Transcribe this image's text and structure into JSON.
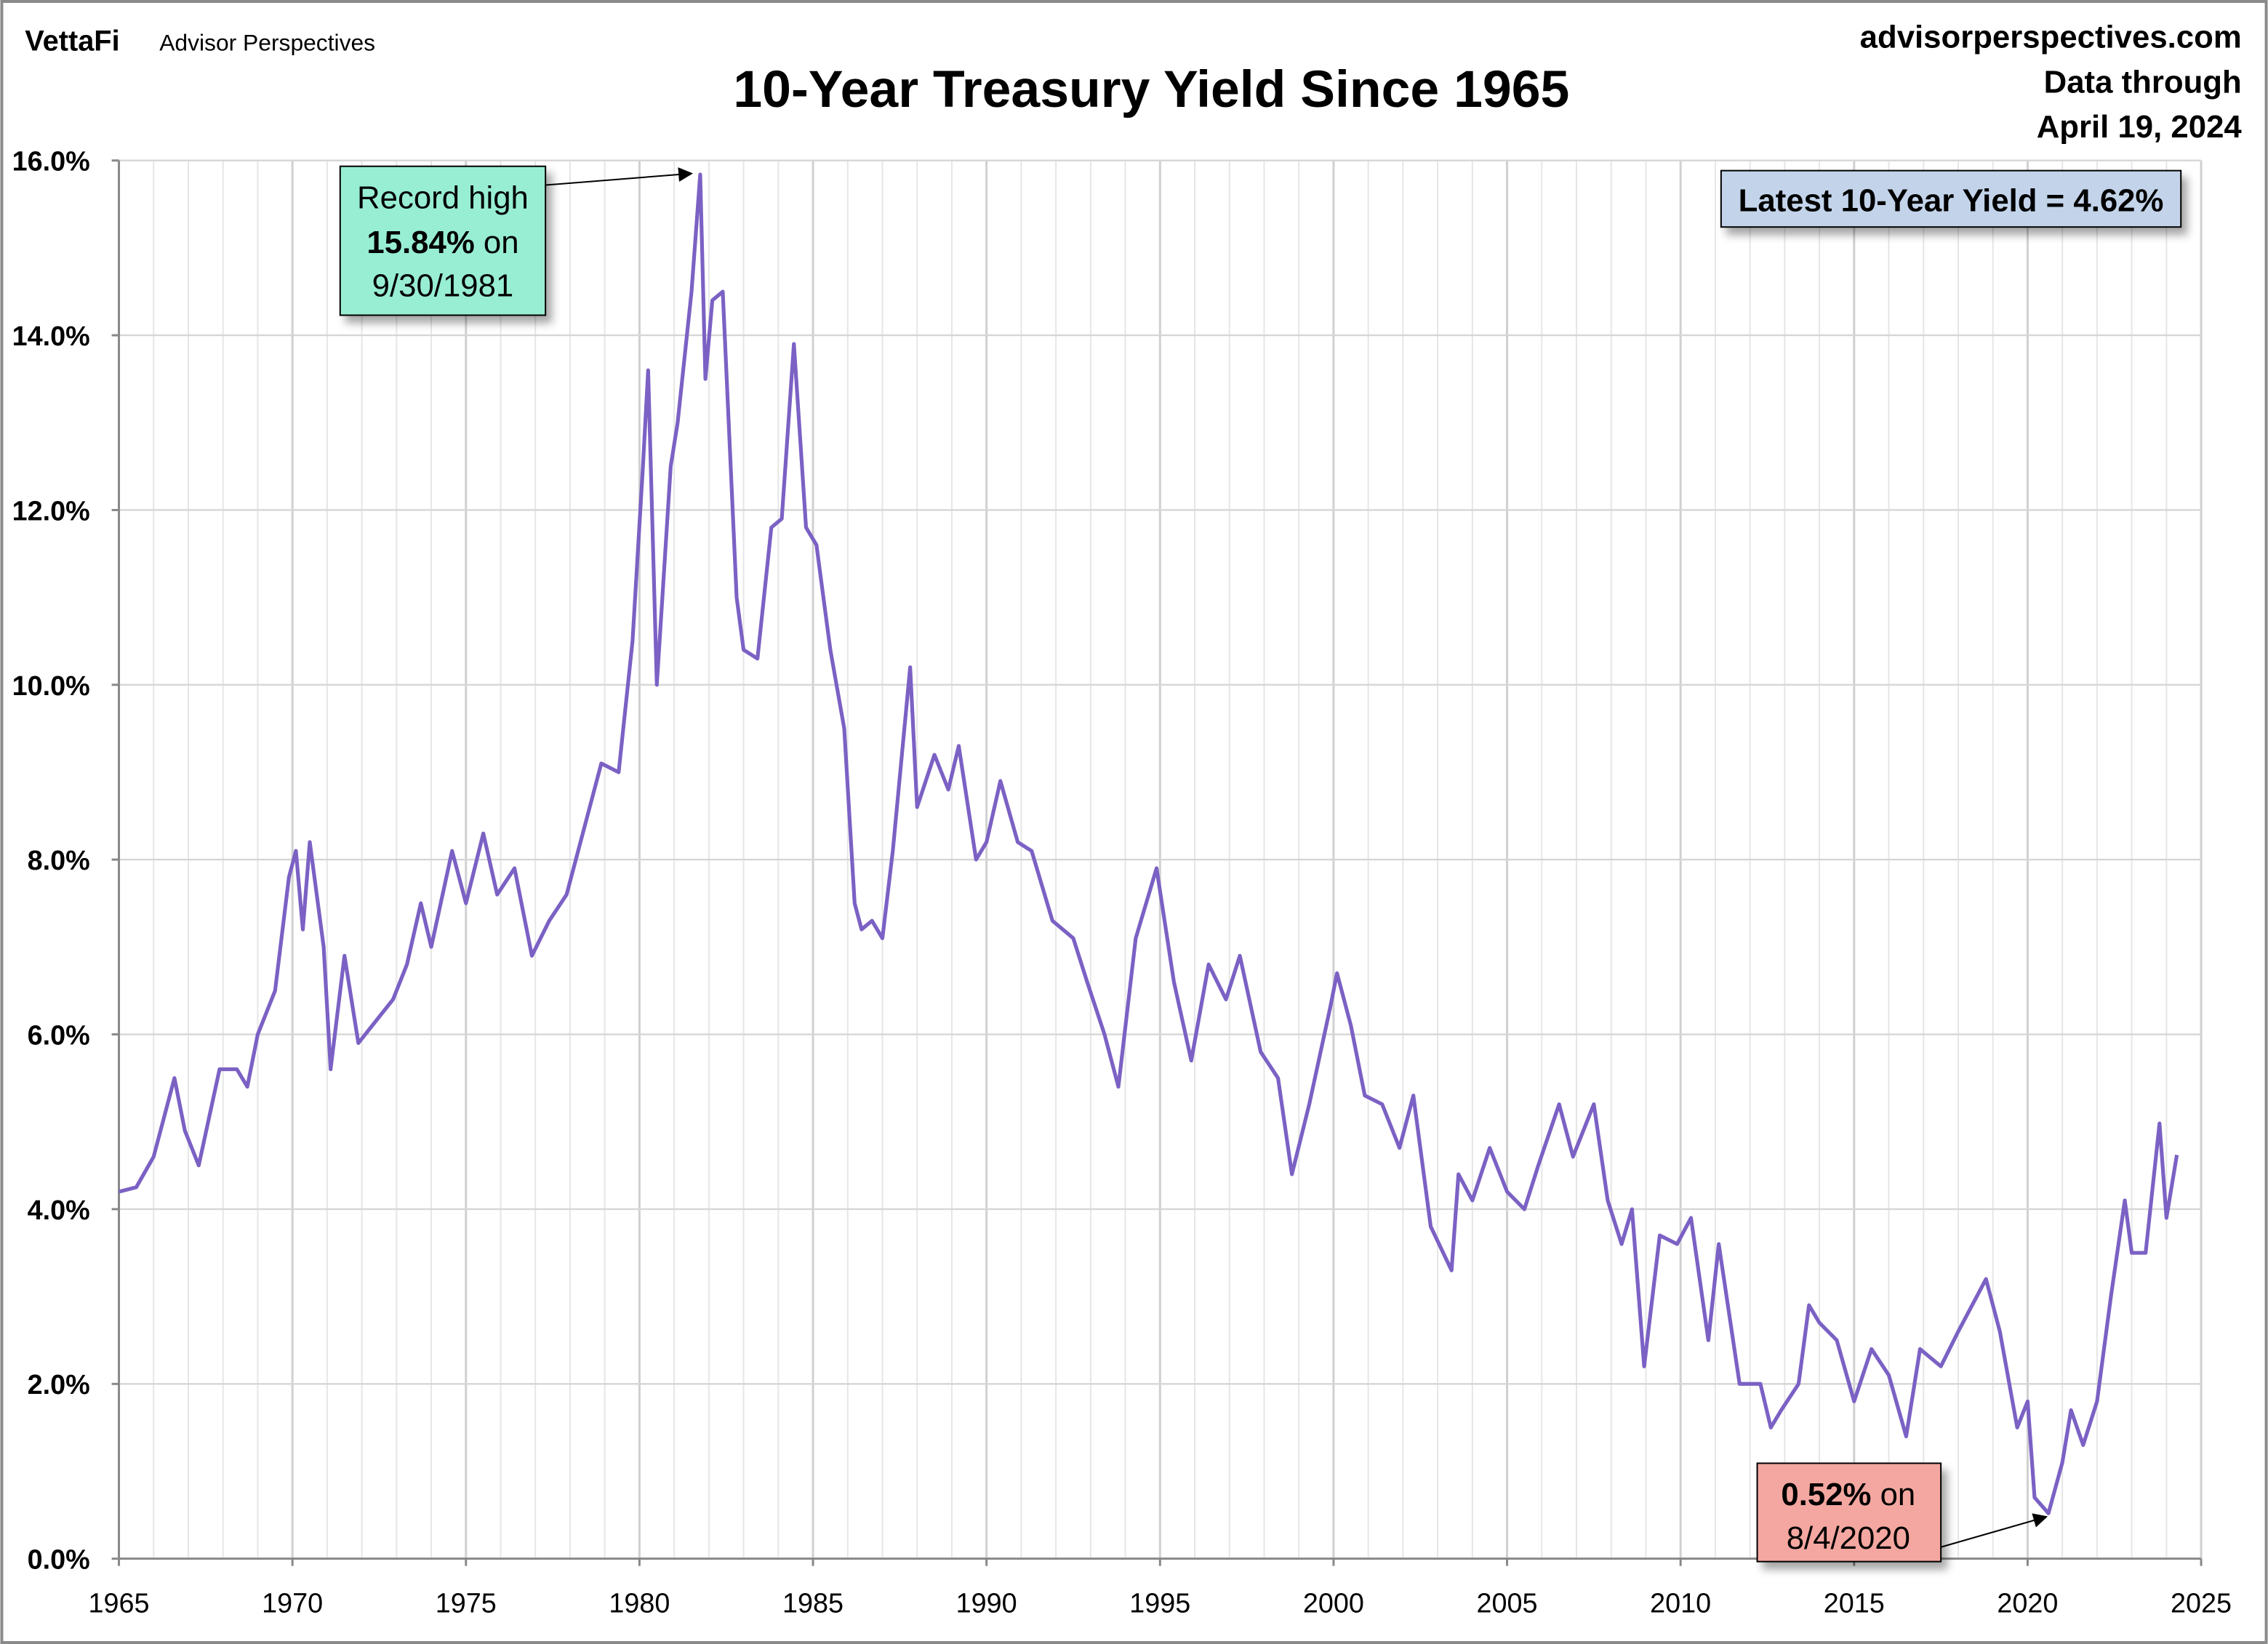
{
  "header": {
    "logo": "VettaFi",
    "brand": "Advisor Perspectives",
    "site": "advisorperspectives.com",
    "data_through_line1": "Data through",
    "data_through_line2": "April 19, 2024"
  },
  "chart_data": {
    "type": "line",
    "title": "10-Year Treasury Yield Since 1965",
    "xlabel": "",
    "ylabel": "",
    "xlim": [
      1965,
      2025
    ],
    "ylim": [
      0,
      16
    ],
    "x_ticks": [
      "1965",
      "1970",
      "1975",
      "1980",
      "1985",
      "1990",
      "1995",
      "2000",
      "2005",
      "2010",
      "2015",
      "2020",
      "2025"
    ],
    "y_ticks": [
      "0.0%",
      "2.0%",
      "4.0%",
      "6.0%",
      "8.0%",
      "10.0%",
      "12.0%",
      "14.0%",
      "16.0%"
    ],
    "grid": true,
    "line_color": "#7b61c4",
    "series": [
      {
        "x": [
          1965.0,
          1965.5,
          1966.0,
          1966.6,
          1966.9,
          1967.3,
          1967.9,
          1968.4,
          1968.7,
          1969.0,
          1969.5,
          1969.9,
          1970.1,
          1970.3,
          1970.5,
          1970.9,
          1971.1,
          1971.5,
          1971.9,
          1972.3,
          1972.9,
          1973.3,
          1973.7,
          1974.0,
          1974.6,
          1975.0,
          1975.5,
          1975.9,
          1976.4,
          1976.9,
          1977.4,
          1977.9,
          1978.5,
          1978.9,
          1979.4,
          1979.8,
          1980.1,
          1980.25,
          1980.5,
          1980.9,
          1981.1,
          1981.5,
          1981.75,
          1981.9,
          1982.1,
          1982.4,
          1982.8,
          1983.0,
          1983.4,
          1983.8,
          1984.1,
          1984.45,
          1984.8,
          1985.1,
          1985.5,
          1985.9,
          1986.2,
          1986.4,
          1986.7,
          1987.0,
          1987.3,
          1987.8,
          1988.0,
          1988.5,
          1988.9,
          1989.2,
          1989.7,
          1990.0,
          1990.4,
          1990.9,
          1991.3,
          1991.9,
          1992.5,
          1992.9,
          1993.4,
          1993.8,
          1994.3,
          1994.9,
          1995.4,
          1995.9,
          1996.4,
          1996.9,
          1997.3,
          1997.9,
          1998.4,
          1998.8,
          1999.3,
          1999.9,
          2000.1,
          2000.5,
          2000.9,
          2001.4,
          2001.9,
          2002.3,
          2002.8,
          2003.4,
          2003.6,
          2004.0,
          2004.5,
          2005.0,
          2005.5,
          2005.9,
          2006.5,
          2006.9,
          2007.5,
          2007.9,
          2008.3,
          2008.6,
          2008.95,
          2009.4,
          2009.9,
          2010.3,
          2010.8,
          2011.1,
          2011.7,
          2012.3,
          2012.6,
          2012.9,
          2013.4,
          2013.7,
          2014.0,
          2014.5,
          2015.0,
          2015.5,
          2016.0,
          2016.5,
          2016.9,
          2017.5,
          2018.0,
          2018.8,
          2019.2,
          2019.7,
          2020.0,
          2020.2,
          2020.6,
          2021.0,
          2021.25,
          2021.6,
          2022.0,
          2022.4,
          2022.8,
          2023.0,
          2023.4,
          2023.8,
          2024.0,
          2024.3
        ],
        "y": [
          4.2,
          4.25,
          4.6,
          5.5,
          4.9,
          4.5,
          5.6,
          5.6,
          5.4,
          6.0,
          6.5,
          7.8,
          8.1,
          7.2,
          8.2,
          7.0,
          5.6,
          6.9,
          5.9,
          6.1,
          6.4,
          6.8,
          7.5,
          7.0,
          8.1,
          7.5,
          8.3,
          7.6,
          7.9,
          6.9,
          7.3,
          7.6,
          8.5,
          9.1,
          9.0,
          10.5,
          12.5,
          13.6,
          10.0,
          12.5,
          13.0,
          14.5,
          15.84,
          13.5,
          14.4,
          14.5,
          11.0,
          10.4,
          10.3,
          11.8,
          11.9,
          13.9,
          11.8,
          11.6,
          10.4,
          9.5,
          7.5,
          7.2,
          7.3,
          7.1,
          8.1,
          10.2,
          8.6,
          9.2,
          8.8,
          9.3,
          8.0,
          8.2,
          8.9,
          8.2,
          8.1,
          7.3,
          7.1,
          6.6,
          6.0,
          5.4,
          7.1,
          7.9,
          6.6,
          5.7,
          6.8,
          6.4,
          6.9,
          5.8,
          5.5,
          4.4,
          5.2,
          6.3,
          6.7,
          6.1,
          5.3,
          5.2,
          4.7,
          5.3,
          3.8,
          3.3,
          4.4,
          4.1,
          4.7,
          4.2,
          4.0,
          4.5,
          5.2,
          4.6,
          5.2,
          4.1,
          3.6,
          4.0,
          2.2,
          3.7,
          3.6,
          3.9,
          2.5,
          3.6,
          2.0,
          2.0,
          1.5,
          1.7,
          2.0,
          2.9,
          2.7,
          2.5,
          1.8,
          2.4,
          2.1,
          1.4,
          2.4,
          2.2,
          2.6,
          3.2,
          2.6,
          1.5,
          1.8,
          0.7,
          0.52,
          1.1,
          1.7,
          1.3,
          1.8,
          3.0,
          4.1,
          3.5,
          3.5,
          4.98,
          3.9,
          4.62
        ]
      }
    ],
    "annotations": {
      "high": {
        "line1": "Record high",
        "value": "15.84%",
        "suffix": " on",
        "date": "9/30/1981",
        "x": 1981.75,
        "y": 15.84,
        "color": "#98eed3"
      },
      "low": {
        "value": "0.52%",
        "suffix": " on",
        "date": "8/4/2020",
        "x": 2020.6,
        "y": 0.52,
        "color": "#f4a7a0"
      },
      "latest": {
        "text": "Latest 10-Year Yield = 4.62%",
        "color": "#c3d4ea"
      }
    }
  }
}
